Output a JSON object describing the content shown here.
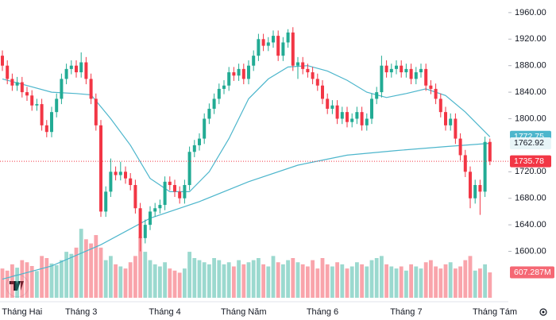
{
  "chart_data": {
    "type": "candlestick",
    "open": [
      1895,
      1880,
      1860,
      1850,
      1855,
      1840,
      1835,
      1820,
      1822,
      1790,
      1780,
      1810,
      1830,
      1860,
      1875,
      1880,
      1870,
      1885,
      1860,
      1830,
      1790,
      1660,
      1690,
      1720,
      1715,
      1720,
      1710,
      1700,
      1665,
      1620,
      1640,
      1660,
      1665,
      1670,
      1705,
      1700,
      1690,
      1680,
      1700,
      1750,
      1760,
      1770,
      1800,
      1815,
      1830,
      1845,
      1850,
      1870,
      1865,
      1875,
      1860,
      1880,
      1895,
      1920,
      1910,
      1915,
      1925,
      1895,
      1915,
      1930,
      1880,
      1885,
      1875,
      1870,
      1860,
      1850,
      1830,
      1815,
      1820,
      1800,
      1810,
      1795,
      1800,
      1810,
      1790,
      1800,
      1830,
      1840,
      1880,
      1870,
      1875,
      1880,
      1870,
      1875,
      1860,
      1870,
      1875,
      1850,
      1845,
      1830,
      1810,
      1790,
      1800,
      1770,
      1745,
      1720,
      1680,
      1700,
      1690,
      1765
    ],
    "high": [
      1903,
      1888,
      1868,
      1863,
      1863,
      1848,
      1843,
      1830,
      1830,
      1798,
      1818,
      1838,
      1868,
      1883,
      1888,
      1888,
      1900,
      1893,
      1868,
      1838,
      1798,
      1698,
      1740,
      1728,
      1735,
      1728,
      1718,
      1708,
      1673,
      1648,
      1668,
      1673,
      1678,
      1713,
      1713,
      1708,
      1698,
      1708,
      1758,
      1768,
      1778,
      1808,
      1823,
      1838,
      1853,
      1858,
      1878,
      1878,
      1883,
      1883,
      1888,
      1903,
      1928,
      1928,
      1923,
      1933,
      1933,
      1923,
      1935,
      1938,
      1893,
      1893,
      1883,
      1878,
      1868,
      1858,
      1838,
      1828,
      1828,
      1818,
      1818,
      1808,
      1818,
      1818,
      1808,
      1838,
      1848,
      1895,
      1888,
      1883,
      1888,
      1888,
      1883,
      1883,
      1878,
      1883,
      1883,
      1858,
      1853,
      1838,
      1818,
      1808,
      1808,
      1778,
      1753,
      1728,
      1708,
      1708,
      1773,
      1770
    ],
    "low": [
      1872,
      1852,
      1842,
      1842,
      1832,
      1827,
      1812,
      1812,
      1782,
      1772,
      1772,
      1802,
      1822,
      1852,
      1867,
      1862,
      1862,
      1852,
      1822,
      1782,
      1652,
      1652,
      1682,
      1707,
      1707,
      1702,
      1692,
      1657,
      1600,
      1612,
      1632,
      1652,
      1657,
      1662,
      1692,
      1682,
      1672,
      1672,
      1692,
      1742,
      1752,
      1762,
      1792,
      1807,
      1822,
      1837,
      1842,
      1857,
      1857,
      1852,
      1852,
      1872,
      1887,
      1902,
      1902,
      1907,
      1887,
      1887,
      1907,
      1872,
      1860,
      1867,
      1862,
      1852,
      1842,
      1822,
      1807,
      1807,
      1792,
      1792,
      1787,
      1787,
      1792,
      1782,
      1782,
      1792,
      1822,
      1832,
      1862,
      1862,
      1867,
      1862,
      1862,
      1852,
      1852,
      1862,
      1842,
      1837,
      1822,
      1802,
      1782,
      1782,
      1762,
      1737,
      1712,
      1665,
      1672,
      1655,
      1682,
      1730
    ],
    "close": [
      1880,
      1860,
      1850,
      1855,
      1840,
      1835,
      1820,
      1822,
      1790,
      1780,
      1810,
      1830,
      1860,
      1875,
      1880,
      1870,
      1885,
      1860,
      1830,
      1790,
      1660,
      1690,
      1720,
      1715,
      1720,
      1710,
      1700,
      1665,
      1620,
      1640,
      1660,
      1665,
      1670,
      1705,
      1700,
      1690,
      1680,
      1700,
      1750,
      1760,
      1770,
      1800,
      1815,
      1830,
      1845,
      1850,
      1870,
      1865,
      1875,
      1860,
      1880,
      1895,
      1920,
      1910,
      1915,
      1925,
      1895,
      1915,
      1930,
      1880,
      1885,
      1875,
      1870,
      1860,
      1850,
      1830,
      1815,
      1820,
      1800,
      1810,
      1795,
      1800,
      1810,
      1790,
      1800,
      1830,
      1840,
      1880,
      1870,
      1875,
      1880,
      1870,
      1875,
      1860,
      1870,
      1875,
      1850,
      1845,
      1830,
      1810,
      1790,
      1800,
      1770,
      1745,
      1720,
      1680,
      1700,
      1690,
      1765,
      1735.78
    ],
    "volume": [
      700,
      650,
      800,
      720,
      900,
      850,
      760,
      640,
      1000,
      950,
      820,
      780,
      900,
      1100,
      1050,
      1200,
      1650,
      1400,
      1300,
      1500,
      1200,
      900,
      1000,
      800,
      750,
      700,
      850,
      1000,
      1450,
      1100,
      900,
      800,
      750,
      850,
      700,
      650,
      600,
      700,
      1100,
      950,
      900,
      850,
      800,
      950,
      900,
      800,
      850,
      750,
      900,
      800,
      850,
      900,
      950,
      800,
      750,
      1000,
      850,
      800,
      900,
      950,
      850,
      800,
      750,
      900,
      700,
      950,
      800,
      750,
      850,
      800,
      700,
      750,
      850,
      800,
      750,
      900,
      950,
      1000,
      800,
      750,
      700,
      750,
      650,
      800,
      750,
      700,
      850,
      900,
      750,
      700,
      800,
      850,
      700,
      750,
      900,
      1000,
      650,
      700,
      800,
      607.287
    ],
    "volume_label": "607.287M",
    "volume_lim": [
      0,
      1900
    ],
    "up_color": "#22ab94",
    "down_color": "#f23645",
    "ma": [
      {
        "color": "#4db6cc",
        "x": [
          0,
          5,
          10,
          15,
          18,
          22,
          26,
          30,
          34,
          38,
          42,
          46,
          50,
          54,
          58,
          62,
          66,
          70,
          74,
          78,
          82,
          86,
          90,
          94,
          99
        ],
        "values": [
          1860,
          1850,
          1840,
          1838,
          1836,
          1800,
          1760,
          1710,
          1690,
          1690,
          1720,
          1770,
          1830,
          1860,
          1878,
          1880,
          1872,
          1858,
          1840,
          1832,
          1838,
          1845,
          1835,
          1810,
          1772.75
        ]
      },
      {
        "color": "#4db6cc",
        "x": [
          0,
          10,
          20,
          30,
          40,
          50,
          60,
          70,
          80,
          90,
          99
        ],
        "values": [
          1558,
          1578,
          1610,
          1650,
          1675,
          1705,
          1730,
          1745,
          1752,
          1758,
          1762.92
        ]
      }
    ],
    "ylim": [
      1530,
      1979
    ],
    "yticks": [
      {
        "value": 1960,
        "label": "1960.00"
      },
      {
        "value": 1920,
        "label": "1920.00"
      },
      {
        "value": 1880,
        "label": "1880.00"
      },
      {
        "value": 1840,
        "label": "1840.00"
      },
      {
        "value": 1800,
        "label": "1800.00"
      },
      {
        "value": 1720,
        "label": "1720.00"
      },
      {
        "value": 1680,
        "label": "1680.00"
      },
      {
        "value": 1640,
        "label": "1640.00"
      },
      {
        "value": 1600,
        "label": "1600.00"
      }
    ],
    "month_labels": [
      {
        "index": 4,
        "label": "Tháng Hai"
      },
      {
        "index": 16,
        "label": "Tháng 3"
      },
      {
        "index": 33,
        "label": "Tháng 4"
      },
      {
        "index": 49,
        "label": "Tháng Năm"
      },
      {
        "index": 65,
        "label": "Tháng 6"
      },
      {
        "index": 82,
        "label": "Tháng 7"
      },
      {
        "index": 100,
        "label": "Tháng Tám"
      }
    ]
  }
}
